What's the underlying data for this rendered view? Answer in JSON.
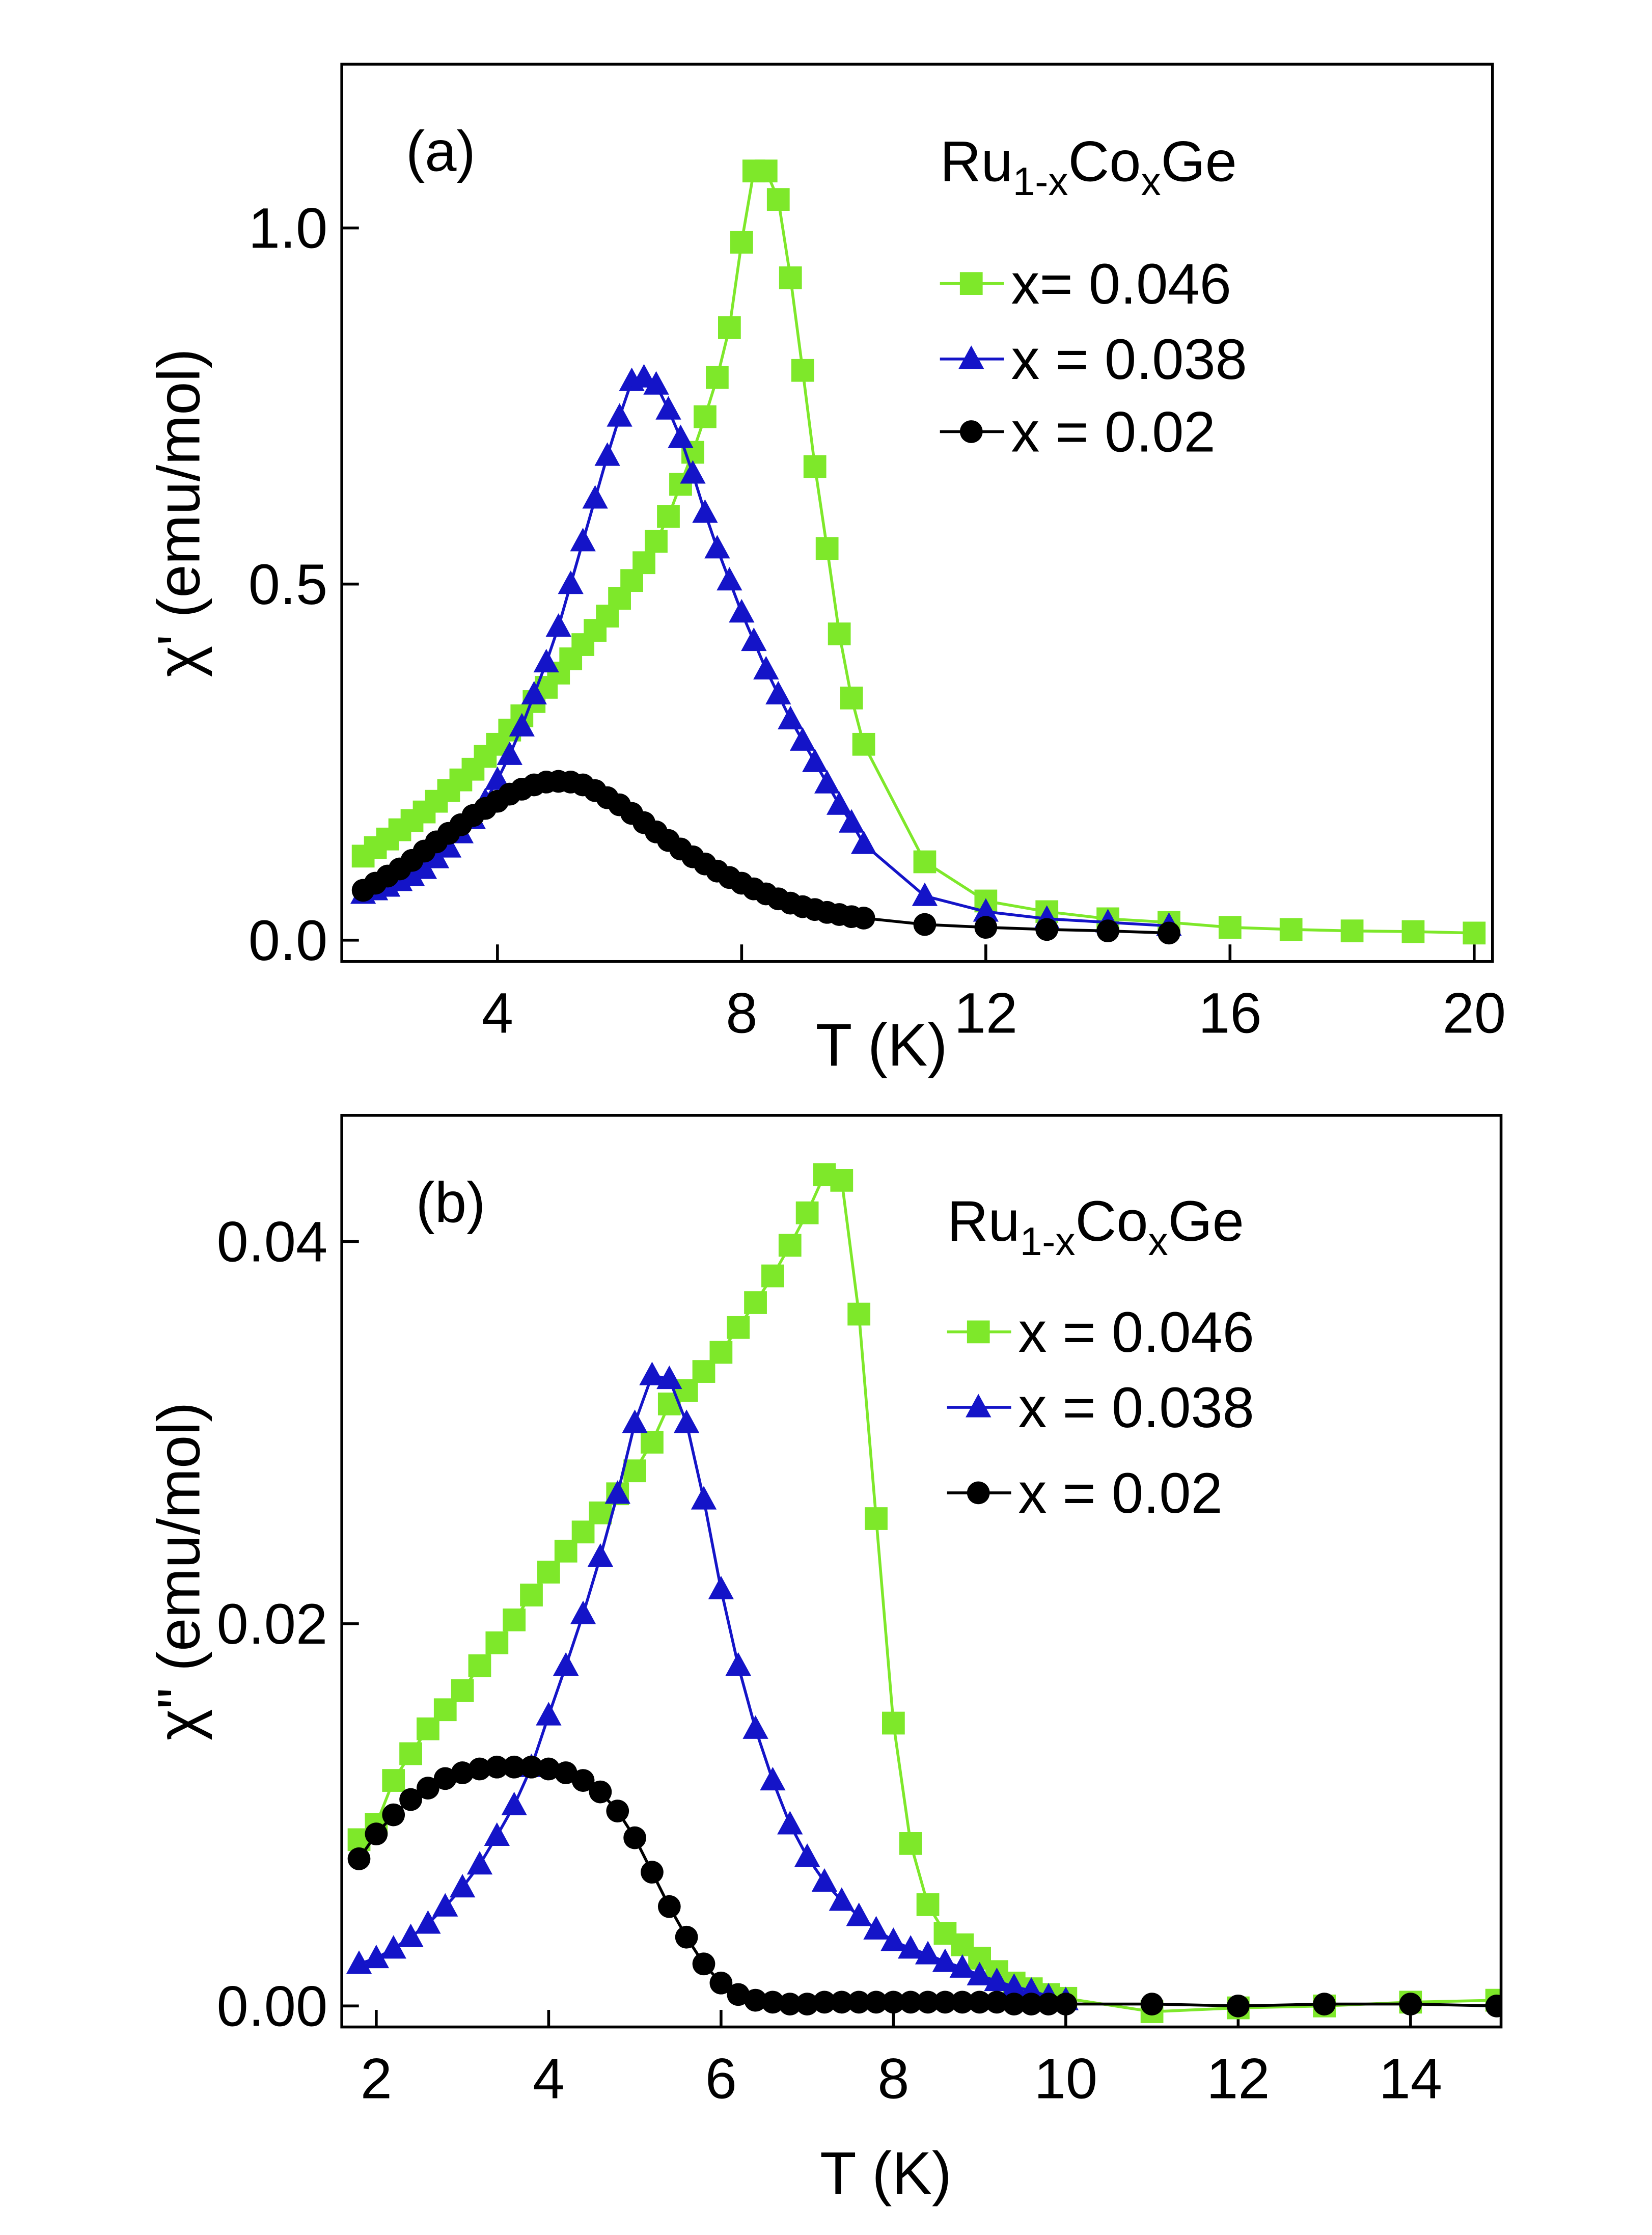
{
  "chart_data": [
    {
      "type": "line",
      "annotation": "(a)",
      "legend_title": [
        "Ru",
        "1-x",
        "Co",
        "x",
        "Ge"
      ],
      "xlabel": "T (K)",
      "ylabel": "χ' (emu/mol)",
      "xlim": [
        1.45,
        20.3
      ],
      "ylim": [
        -0.03,
        1.23
      ],
      "xticks": [
        4,
        8,
        12,
        16,
        20
      ],
      "yticks": [
        {
          "value": 0,
          "label": "0.0"
        },
        0.5,
        {
          "value": 1,
          "label": "1.0"
        }
      ],
      "legend": "upper right",
      "series": [
        {
          "name": "x= 0.046",
          "color": "#7ee82a",
          "marker": "square",
          "x": [
            1.8,
            2.0,
            2.2,
            2.4,
            2.6,
            2.8,
            3.0,
            3.2,
            3.4,
            3.6,
            3.8,
            4.0,
            4.2,
            4.4,
            4.6,
            4.8,
            5.0,
            5.2,
            5.4,
            5.6,
            5.8,
            6.0,
            6.2,
            6.4,
            6.6,
            6.8,
            7.0,
            7.2,
            7.4,
            7.6,
            7.8,
            8.0,
            8.2,
            8.4,
            8.6,
            8.8,
            9.0,
            9.2,
            9.4,
            9.6,
            9.8,
            10.0,
            11,
            12,
            13,
            14,
            15,
            16,
            17,
            18,
            19,
            20
          ],
          "values": [
            0.118,
            0.13,
            0.142,
            0.155,
            0.168,
            0.18,
            0.195,
            0.21,
            0.225,
            0.24,
            0.258,
            0.275,
            0.295,
            0.315,
            0.335,
            0.355,
            0.375,
            0.395,
            0.415,
            0.435,
            0.455,
            0.48,
            0.505,
            0.53,
            0.56,
            0.595,
            0.64,
            0.685,
            0.735,
            0.79,
            0.86,
            0.98,
            1.08,
            1.08,
            1.04,
            0.93,
            0.8,
            0.665,
            0.55,
            0.43,
            0.34,
            0.275,
            0.11,
            0.055,
            0.04,
            0.03,
            0.025,
            0.018,
            0.015,
            0.013,
            0.012,
            0.01
          ]
        },
        {
          "name": "x = 0.038",
          "color": "#1414c8",
          "marker": "triangle",
          "x": [
            1.8,
            2.0,
            2.2,
            2.4,
            2.6,
            2.8,
            3.0,
            3.2,
            3.4,
            3.6,
            3.8,
            4.0,
            4.2,
            4.4,
            4.6,
            4.8,
            5.0,
            5.2,
            5.4,
            5.6,
            5.8,
            6.0,
            6.2,
            6.4,
            6.6,
            6.8,
            7.0,
            7.2,
            7.4,
            7.6,
            7.8,
            8.0,
            8.2,
            8.4,
            8.6,
            8.8,
            9.0,
            9.2,
            9.4,
            9.6,
            9.8,
            10.0,
            11,
            12,
            13,
            14,
            15
          ],
          "values": [
            0.065,
            0.07,
            0.075,
            0.083,
            0.09,
            0.1,
            0.115,
            0.13,
            0.15,
            0.17,
            0.195,
            0.225,
            0.26,
            0.3,
            0.345,
            0.39,
            0.44,
            0.5,
            0.56,
            0.62,
            0.68,
            0.735,
            0.785,
            0.79,
            0.78,
            0.745,
            0.705,
            0.655,
            0.6,
            0.55,
            0.505,
            0.46,
            0.42,
            0.38,
            0.345,
            0.31,
            0.28,
            0.25,
            0.22,
            0.19,
            0.165,
            0.135,
            0.062,
            0.04,
            0.03,
            0.025,
            0.02
          ]
        },
        {
          "name": "x = 0.02",
          "color": "#000000",
          "marker": "circle",
          "x": [
            1.8,
            2.0,
            2.2,
            2.4,
            2.6,
            2.8,
            3.0,
            3.2,
            3.4,
            3.6,
            3.8,
            4.0,
            4.2,
            4.4,
            4.6,
            4.8,
            5.0,
            5.2,
            5.4,
            5.6,
            5.8,
            6.0,
            6.2,
            6.4,
            6.6,
            6.8,
            7.0,
            7.2,
            7.4,
            7.6,
            7.8,
            8.0,
            8.2,
            8.4,
            8.6,
            8.8,
            9.0,
            9.2,
            9.4,
            9.6,
            9.8,
            10.0,
            11,
            12,
            13,
            14,
            15
          ],
          "values": [
            0.07,
            0.08,
            0.09,
            0.1,
            0.112,
            0.125,
            0.138,
            0.15,
            0.162,
            0.175,
            0.185,
            0.195,
            0.205,
            0.212,
            0.218,
            0.222,
            0.223,
            0.222,
            0.218,
            0.21,
            0.2,
            0.19,
            0.178,
            0.165,
            0.152,
            0.14,
            0.128,
            0.117,
            0.107,
            0.097,
            0.088,
            0.08,
            0.072,
            0.065,
            0.058,
            0.052,
            0.047,
            0.043,
            0.039,
            0.036,
            0.033,
            0.031,
            0.022,
            0.018,
            0.015,
            0.013,
            0.01
          ]
        }
      ]
    },
    {
      "type": "line",
      "annotation": "(b)",
      "legend_title": [
        "Ru",
        "1-x",
        "Co",
        "x",
        "Ge"
      ],
      "xlabel": "T (K)",
      "ylabel": "χ\" (emu/mol)",
      "xlim": [
        1.6,
        15.05
      ],
      "ylim": [
        -0.0011,
        0.0466
      ],
      "xticks": [
        2,
        4,
        6,
        8,
        10,
        12,
        14
      ],
      "yticks": [
        {
          "value": 0,
          "label": "0.00"
        },
        0.02,
        0.04
      ],
      "legend": "upper right",
      "series": [
        {
          "name": "x = 0.046",
          "color": "#7ee82a",
          "marker": "square",
          "x": [
            1.8,
            2.0,
            2.2,
            2.4,
            2.6,
            2.8,
            3.0,
            3.2,
            3.4,
            3.6,
            3.8,
            4.0,
            4.2,
            4.4,
            4.6,
            4.8,
            5.0,
            5.2,
            5.4,
            5.6,
            5.8,
            6.0,
            6.2,
            6.4,
            6.6,
            6.8,
            7.0,
            7.2,
            7.4,
            7.6,
            7.8,
            8.0,
            8.2,
            8.4,
            8.6,
            8.8,
            9.0,
            9.2,
            9.4,
            9.6,
            9.8,
            10.0,
            11,
            12,
            13,
            14,
            15
          ],
          "values": [
            0.0087,
            0.0095,
            0.0118,
            0.0132,
            0.0145,
            0.0155,
            0.0165,
            0.0178,
            0.019,
            0.0202,
            0.0215,
            0.0227,
            0.0238,
            0.0248,
            0.0258,
            0.0268,
            0.028,
            0.0295,
            0.0315,
            0.0322,
            0.0332,
            0.0342,
            0.0355,
            0.0368,
            0.0382,
            0.0398,
            0.0415,
            0.0435,
            0.0432,
            0.0362,
            0.0255,
            0.0148,
            0.0085,
            0.0053,
            0.0038,
            0.0032,
            0.0025,
            0.0018,
            0.0012,
            0.0009,
            0.0006,
            0.0004,
            -0.0003,
            -0.0001,
            0,
            0.0002,
            0.0003
          ]
        },
        {
          "name": "x = 0.038",
          "color": "#1414c8",
          "marker": "triangle",
          "x": [
            1.8,
            2.0,
            2.2,
            2.4,
            2.6,
            2.8,
            3.0,
            3.2,
            3.4,
            3.6,
            3.8,
            4.0,
            4.2,
            4.4,
            4.6,
            4.8,
            5.0,
            5.2,
            5.4,
            5.6,
            5.8,
            6.0,
            6.2,
            6.4,
            6.6,
            6.8,
            7.0,
            7.2,
            7.4,
            7.6,
            7.8,
            8.0,
            8.2,
            8.4,
            8.6,
            8.8,
            9.0,
            9.2,
            9.4,
            9.6,
            9.8,
            10.0
          ],
          "values": [
            0.0022,
            0.0025,
            0.003,
            0.0036,
            0.0043,
            0.0052,
            0.0062,
            0.0074,
            0.0089,
            0.0105,
            0.0125,
            0.0152,
            0.0178,
            0.0205,
            0.0235,
            0.0268,
            0.0305,
            0.033,
            0.0328,
            0.0305,
            0.0265,
            0.0218,
            0.0178,
            0.0145,
            0.0118,
            0.0095,
            0.0078,
            0.0065,
            0.0055,
            0.0047,
            0.004,
            0.0034,
            0.003,
            0.0027,
            0.0023,
            0.002,
            0.0016,
            0.0013,
            0.001,
            0.0008,
            0.0005,
            0.0003
          ]
        },
        {
          "name": "x = 0.02",
          "color": "#000000",
          "marker": "circle",
          "x": [
            1.8,
            2.0,
            2.2,
            2.4,
            2.6,
            2.8,
            3.0,
            3.2,
            3.4,
            3.6,
            3.8,
            4.0,
            4.2,
            4.4,
            4.6,
            4.8,
            5.0,
            5.2,
            5.4,
            5.6,
            5.8,
            6.0,
            6.2,
            6.4,
            6.6,
            6.8,
            7.0,
            7.2,
            7.4,
            7.6,
            7.8,
            8.0,
            8.2,
            8.4,
            8.6,
            8.8,
            9.0,
            9.2,
            9.4,
            9.6,
            9.8,
            10.0,
            11,
            12,
            13,
            14,
            15
          ],
          "values": [
            0.0077,
            0.009,
            0.01,
            0.0108,
            0.0114,
            0.0119,
            0.0122,
            0.0124,
            0.0125,
            0.0125,
            0.0125,
            0.0124,
            0.0122,
            0.0118,
            0.0112,
            0.0102,
            0.0088,
            0.007,
            0.0052,
            0.0036,
            0.0022,
            0.0012,
            0.0006,
            0.0003,
            0.0002,
            0.0001,
            0.0001,
            0.0002,
            0.0002,
            0.0002,
            0.0002,
            0.0002,
            0.0002,
            0.0002,
            0.0002,
            0.0002,
            0.0002,
            0.0002,
            0.0001,
            0.0001,
            0.0001,
            0.0001,
            0.0001,
            0,
            0.0001,
            0.0001,
            0
          ]
        }
      ]
    }
  ]
}
